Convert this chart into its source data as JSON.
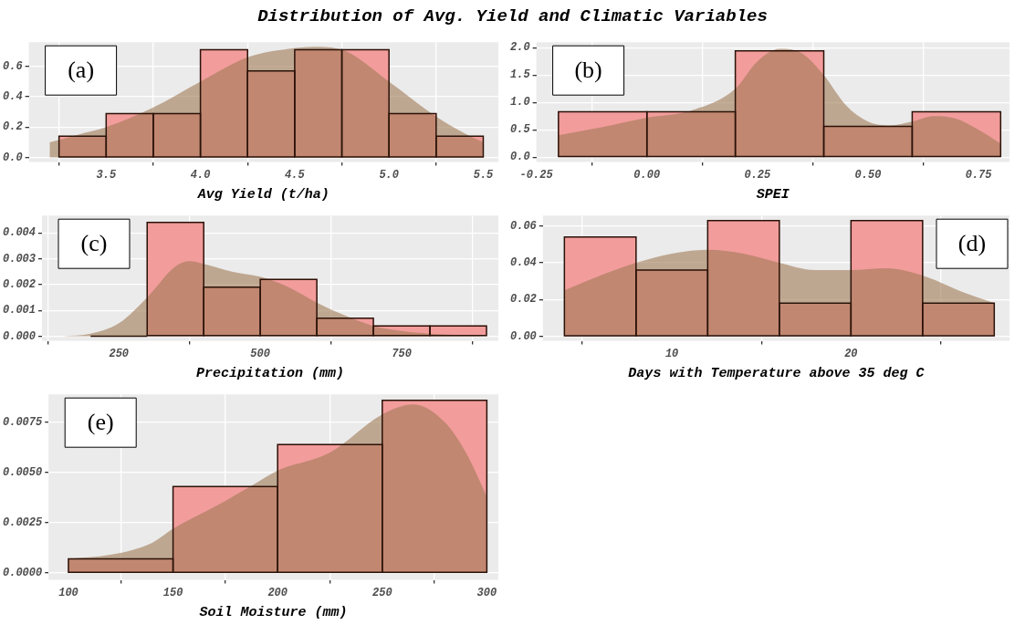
{
  "chart_data": [
    {
      "type": "histogram",
      "title": "Distribution of Avg. Yield and Climatic Variables",
      "xlabel": "Avg Yield (t/ha)",
      "grid": true,
      "annotations": [
        "(a)"
      ],
      "xlim": [
        3.09,
        5.58
      ],
      "xticks": [
        3.5,
        {
          "value": 4,
          "label": "4.0"
        },
        4.5,
        {
          "value": 5,
          "label": "5.0"
        },
        5.5
      ],
      "ylim": [
        -0.03,
        0.76
      ],
      "yticks": [
        {
          "value": 0,
          "label": "0.0"
        },
        0.2,
        0.4,
        0.6
      ],
      "series": [
        {
          "color": "#f29c9c",
          "bins": [
            3.25,
            3.5,
            3.75,
            4,
            4.25,
            4.5,
            4.75,
            5,
            5.25,
            5.5
          ],
          "values": [
            0.14,
            0.29,
            0.29,
            0.71,
            0.57,
            0.71,
            0.71,
            0.29,
            0.14
          ]
        },
        {
          "type": "area",
          "color": "#a07a55",
          "x": [
            3.2,
            3.35,
            3.5,
            3.75,
            4,
            4.25,
            4.5,
            4.6,
            4.75,
            5,
            5.25,
            5.4,
            5.5
          ],
          "values": [
            0.1,
            0.15,
            0.2,
            0.33,
            0.5,
            0.66,
            0.72,
            0.73,
            0.71,
            0.5,
            0.27,
            0.16,
            0.1
          ]
        }
      ]
    },
    {
      "type": "histogram",
      "xlabel": "SPEI",
      "grid": true,
      "annotations": [
        "(b)"
      ],
      "xlim": [
        -0.25,
        0.82
      ],
      "xticks": [
        -0.25,
        {
          "value": 0,
          "label": "0.00"
        },
        0.25,
        {
          "value": 0.5,
          "label": "0.50"
        },
        0.75
      ],
      "ylim": [
        -0.09,
        2.1
      ],
      "yticks": [
        {
          "value": 0,
          "label": "0.0"
        },
        0.5,
        {
          "value": 1,
          "label": "1.0"
        },
        1.5,
        {
          "value": 2,
          "label": "2.0"
        }
      ],
      "series": [
        {
          "color": "#f29c9c",
          "bins": [
            -0.2,
            0,
            0.2,
            0.4,
            0.6,
            0.8
          ],
          "values": [
            0.83,
            0.83,
            1.94,
            0.56,
            0.83
          ]
        },
        {
          "type": "area",
          "color": "#a07a55",
          "x": [
            -0.2,
            -0.1,
            0,
            0.1,
            0.2,
            0.25,
            0.3,
            0.35,
            0.4,
            0.45,
            0.5,
            0.55,
            0.6,
            0.65,
            0.7,
            0.75,
            0.8
          ],
          "values": [
            0.4,
            0.55,
            0.72,
            0.85,
            1.25,
            1.75,
            1.98,
            1.9,
            1.5,
            0.95,
            0.65,
            0.58,
            0.65,
            0.75,
            0.7,
            0.5,
            0.25
          ]
        }
      ]
    },
    {
      "type": "histogram",
      "xlabel": "Precipitation (mm)",
      "grid": true,
      "annotations": [
        "(c)"
      ],
      "xlim": [
        114,
        921
      ],
      "xticks": [
        250,
        500,
        750
      ],
      "ylim": [
        -0.00018,
        0.00467
      ],
      "yticks": [
        {
          "value": 0,
          "label": "0.000"
        },
        0.001,
        0.002,
        0.003,
        0.004
      ],
      "series": [
        {
          "color": "#f29c9c",
          "bins": [
            200,
            300,
            400,
            500,
            600,
            700,
            800,
            900
          ],
          "values": [
            0,
            0.0044,
            0.0019,
            0.0022,
            0.0007,
            0.0004,
            0.0004
          ]
        },
        {
          "type": "area",
          "color": "#a07a55",
          "x": [
            151,
            200,
            250,
            300,
            350,
            375,
            400,
            450,
            500,
            550,
            600,
            650,
            700,
            750,
            800,
            900
          ],
          "values": [
            0,
            0.0001,
            0.0005,
            0.0015,
            0.0027,
            0.0029,
            0.0028,
            0.0025,
            0.0023,
            0.0019,
            0.0013,
            0.0008,
            0.0004,
            0.0002,
            0.0001,
            0
          ]
        }
      ]
    },
    {
      "type": "histogram",
      "xlabel": "Days with Temperature above 35 deg C",
      "grid": true,
      "annotations": [
        "(d)"
      ],
      "xlim": [
        2.8,
        28.85
      ],
      "xticks": [
        10,
        20
      ],
      "ylim": [
        -0.0025,
        0.0657
      ],
      "yticks": [
        {
          "value": 0,
          "label": "0.00"
        },
        0.02,
        0.04,
        0.06
      ],
      "series": [
        {
          "color": "#f29c9c",
          "bins": [
            4,
            8,
            12,
            16,
            20,
            24,
            28
          ],
          "values": [
            0.054,
            0.036,
            0.063,
            0.018,
            0.063,
            0.018
          ]
        },
        {
          "type": "area",
          "color": "#a07a55",
          "x": [
            4,
            6,
            8,
            10,
            12,
            14,
            16,
            18,
            20,
            22,
            24,
            26,
            28
          ],
          "values": [
            0.025,
            0.033,
            0.04,
            0.045,
            0.047,
            0.045,
            0.04,
            0.036,
            0.036,
            0.037,
            0.033,
            0.025,
            0.018
          ]
        }
      ]
    },
    {
      "type": "histogram",
      "xlabel": "Soil Moisture (mm)",
      "grid": true,
      "annotations": [
        "(e)"
      ],
      "xlim": [
        90.5,
        305.5
      ],
      "xticks": [
        100,
        150,
        200,
        250,
        300
      ],
      "ylim": [
        -0.00035,
        0.0089
      ],
      "yticks": [
        {
          "value": 0,
          "label": "0.0000"
        },
        0.0025,
        {
          "value": 0.005,
          "label": "0.0050"
        },
        0.0075
      ],
      "series": [
        {
          "color": "#f29c9c",
          "bins": [
            100,
            150,
            200,
            250,
            300
          ],
          "values": [
            0.0007,
            0.0043,
            0.0064,
            0.0086
          ]
        },
        {
          "type": "area",
          "color": "#a07a55",
          "x": [
            100,
            120,
            140,
            150,
            170,
            190,
            200,
            225,
            250,
            265,
            280,
            290,
            300
          ],
          "values": [
            0.0007,
            0.0009,
            0.0015,
            0.0022,
            0.0033,
            0.0045,
            0.0051,
            0.006,
            0.0079,
            0.0084,
            0.0075,
            0.006,
            0.0038
          ]
        }
      ]
    }
  ]
}
